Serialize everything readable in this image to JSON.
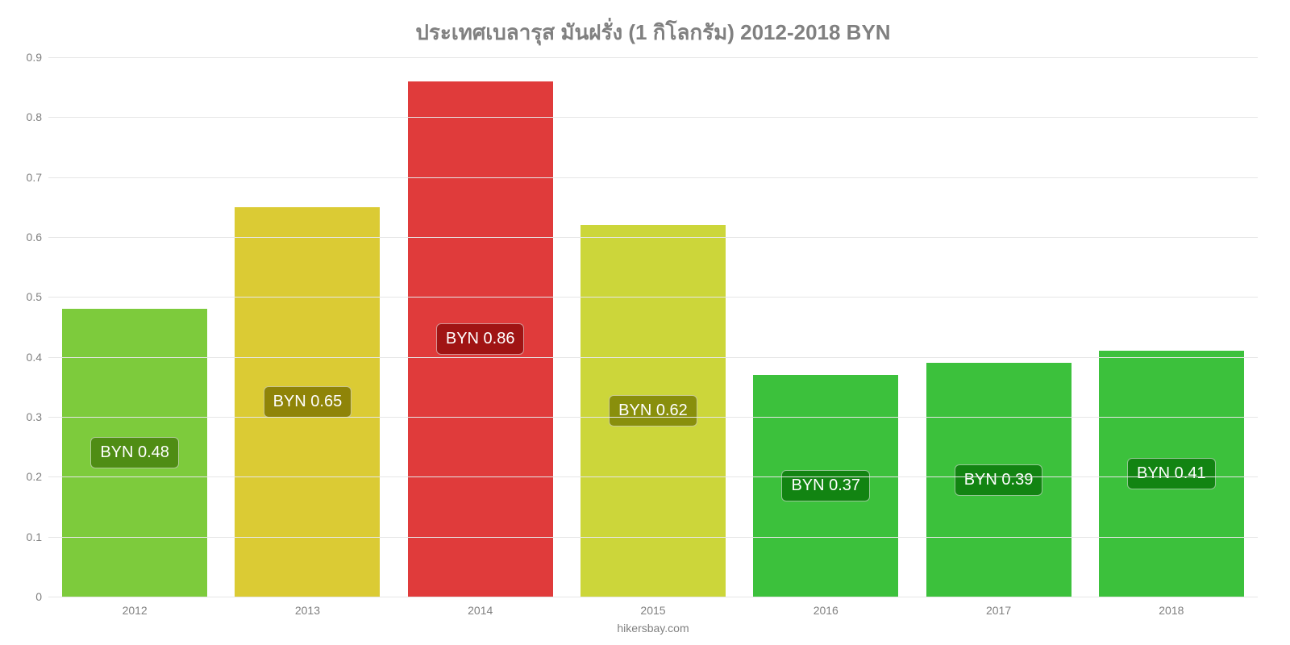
{
  "chart": {
    "type": "bar",
    "title": "ประเทศเบลารุส มันฝรั่ง (1 กิโลกรัม) 2012-2018 BYN",
    "title_color": "#808080",
    "title_fontsize": 26,
    "attribution": "hikersbay.com",
    "background_color": "#ffffff",
    "grid_color": "#e6e6e6",
    "axis_line_color": "#cccccc",
    "tick_label_color": "#808080",
    "tick_label_fontsize": 14,
    "data_label_fontsize": 20,
    "data_label_text_color": "#ffffff",
    "ylim": [
      0,
      0.9
    ],
    "yticks": [
      0,
      0.1,
      0.2,
      0.3,
      0.4,
      0.5,
      0.6,
      0.7,
      0.8,
      0.9
    ],
    "bar_width_ratio": 0.84,
    "categories": [
      "2012",
      "2013",
      "2014",
      "2015",
      "2016",
      "2017",
      "2018"
    ],
    "bars": [
      {
        "value": 0.48,
        "label": "BYN 0.48",
        "fill": "#7dcb3c",
        "label_bg": "#4f8d14"
      },
      {
        "value": 0.65,
        "label": "BYN 0.65",
        "fill": "#dbcb34",
        "label_bg": "#8f8408"
      },
      {
        "value": 0.86,
        "label": "BYN 0.86",
        "fill": "#e03b3b",
        "label_bg": "#a01414"
      },
      {
        "value": 0.62,
        "label": "BYN 0.62",
        "fill": "#ccd63a",
        "label_bg": "#898f0c"
      },
      {
        "value": 0.37,
        "label": "BYN 0.37",
        "fill": "#3cc13c",
        "label_bg": "#128412"
      },
      {
        "value": 0.39,
        "label": "BYN 0.39",
        "fill": "#3cc13c",
        "label_bg": "#128412"
      },
      {
        "value": 0.41,
        "label": "BYN 0.41",
        "fill": "#3cc13c",
        "label_bg": "#128412"
      }
    ]
  }
}
